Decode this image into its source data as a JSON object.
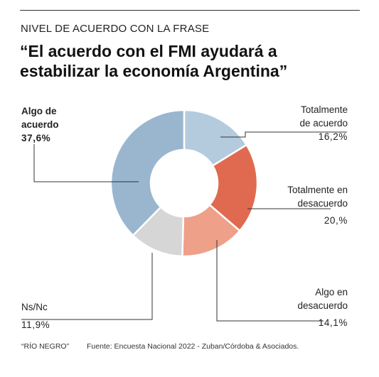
{
  "header": {
    "kicker": "NIVEL DE ACUERDO CON LA FRASE",
    "title_line1": "“El acuerdo con el FMI ayudará a",
    "title_line2": "estabilizar la economía Argentina”"
  },
  "chart_data": {
    "type": "pie",
    "variant": "donut",
    "title": "“El acuerdo con el FMI ayudará a estabilizar la economía Argentina”",
    "slices": [
      {
        "label_lines": [
          "Totalmente",
          "de acuerdo"
        ],
        "value": 16.2,
        "value_text": "16,2%",
        "color": "#b4cbdd"
      },
      {
        "label_lines": [
          "Totalmente en",
          "desacuerdo"
        ],
        "value": 20.0,
        "value_text": "20,%",
        "color": "#e06a4f"
      },
      {
        "label_lines": [
          "Algo en",
          "desacuerdo"
        ],
        "value": 14.1,
        "value_text": "14,1%",
        "color": "#eea088"
      },
      {
        "label_lines": [
          "Ns/Nc"
        ],
        "value": 11.9,
        "value_text": "11,9%",
        "color": "#d6d6d6"
      },
      {
        "label_lines": [
          "Algo de",
          "acuerdo"
        ],
        "value": 37.6,
        "value_text": "37,6%",
        "color": "#9ab6cf"
      }
    ]
  },
  "footer": {
    "credit": "“RÍO NEGRO”",
    "source": "Fuente: Encuesta Nacional 2022 - Zuban/Córdoba & Asociados."
  }
}
